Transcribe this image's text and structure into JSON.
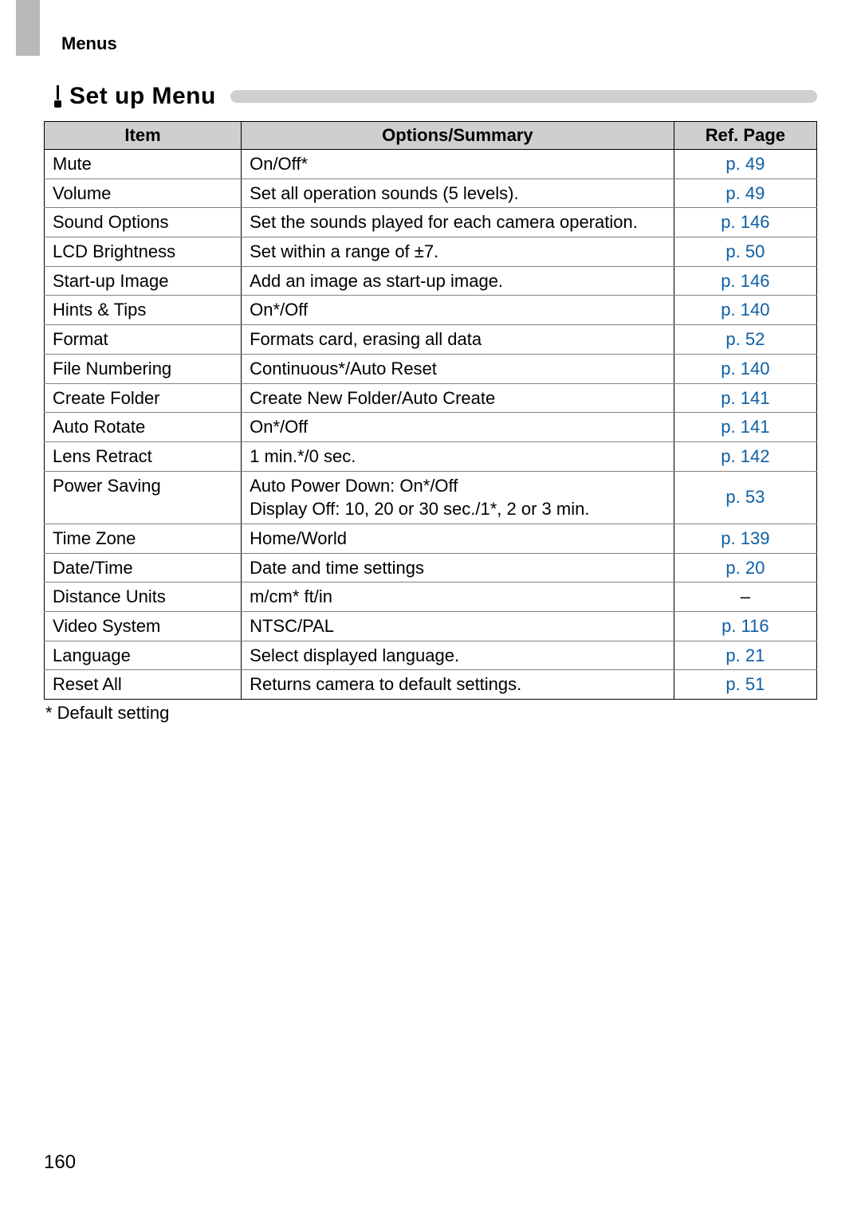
{
  "section_label": "Menus",
  "title": "Set up Menu",
  "page_number": "160",
  "footnote": "* Default setting",
  "table": {
    "headers": {
      "item": "Item",
      "options": "Options/Summary",
      "ref": "Ref. Page"
    },
    "ref_link_color": "#0e5fa4",
    "header_bg": "#cfcfcf",
    "rows": [
      {
        "item": "Mute",
        "options": "On/Off*",
        "ref": "p. 49",
        "is_link": true
      },
      {
        "item": "Volume",
        "options": "Set all operation sounds (5 levels).",
        "ref": "p. 49",
        "is_link": true
      },
      {
        "item": "Sound Options",
        "options": "Set the sounds played for each camera operation.",
        "ref": "p. 146",
        "is_link": true
      },
      {
        "item": "LCD Brightness",
        "options": "Set within a range of ±7.",
        "ref": "p. 50",
        "is_link": true
      },
      {
        "item": "Start-up Image",
        "options": "Add an image as start-up image.",
        "ref": "p. 146",
        "is_link": true
      },
      {
        "item": "Hints & Tips",
        "options": "On*/Off",
        "ref": "p. 140",
        "is_link": true
      },
      {
        "item": "Format",
        "options": "Formats card, erasing all data",
        "ref": "p. 52",
        "is_link": true
      },
      {
        "item": "File Numbering",
        "options": "Continuous*/Auto Reset",
        "ref": "p. 140",
        "is_link": true
      },
      {
        "item": "Create Folder",
        "options": "Create New Folder/Auto Create",
        "ref": "p. 141",
        "is_link": true
      },
      {
        "item": "Auto Rotate",
        "options": "On*/Off",
        "ref": "p. 141",
        "is_link": true
      },
      {
        "item": "Lens Retract",
        "options": "1 min.*/0 sec.",
        "ref": "p. 142",
        "is_link": true
      },
      {
        "item": "Power Saving",
        "options": "Auto Power Down: On*/Off\nDisplay Off: 10, 20 or 30 sec./1*, 2 or 3 min.",
        "ref": "p. 53",
        "is_link": true
      },
      {
        "item": "Time Zone",
        "options": "Home/World",
        "ref": "p. 139",
        "is_link": true
      },
      {
        "item": "Date/Time",
        "options": "Date and time settings",
        "ref": "p. 20",
        "is_link": true
      },
      {
        "item": "Distance Units",
        "options": "m/cm* ft/in",
        "ref": "–",
        "is_link": false
      },
      {
        "item": "Video System",
        "options": "NTSC/PAL",
        "ref": "p. 116",
        "is_link": true
      },
      {
        "item": "Language",
        "options": "Select displayed language.",
        "ref": "p. 21",
        "is_link": true
      },
      {
        "item": "Reset All",
        "options": "Returns camera to default settings.",
        "ref": "p. 51",
        "is_link": true
      }
    ]
  }
}
